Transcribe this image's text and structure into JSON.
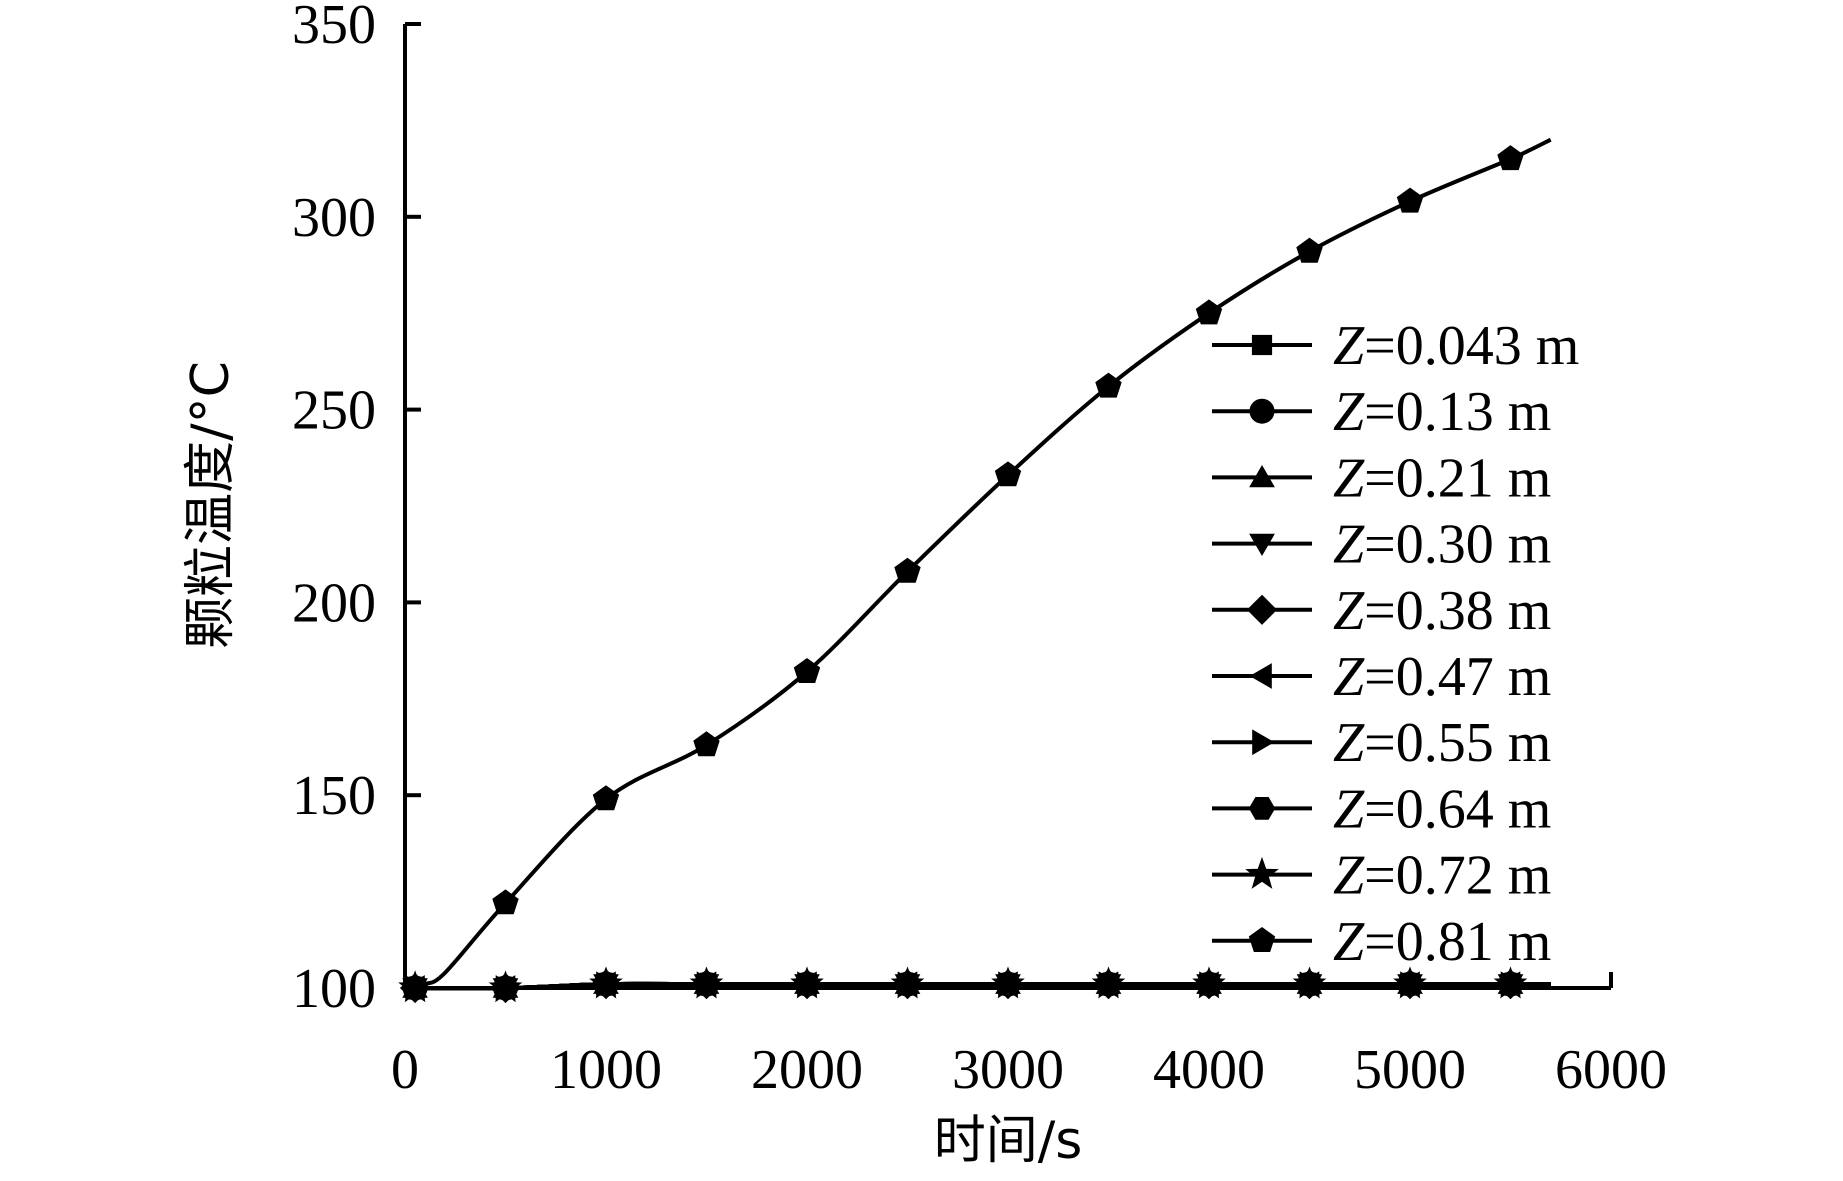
{
  "chart_data": {
    "type": "line",
    "xlabel": "时间/s",
    "ylabel": "颗粒温度/°C",
    "xlim": [
      0,
      6000
    ],
    "ylim": [
      100,
      350
    ],
    "xticks": [
      0,
      1000,
      2000,
      3000,
      4000,
      5000,
      6000
    ],
    "yticks": [
      100,
      150,
      200,
      250,
      300,
      350
    ],
    "grid": false,
    "legend_position": "right",
    "series": [
      {
        "name_italic": "Z",
        "name_value": "=0.043 m",
        "marker": "square",
        "x": [
          50,
          500,
          1000,
          1500,
          2000,
          2500,
          3000,
          3500,
          4000,
          4500,
          5000,
          5500,
          5700
        ],
        "y": [
          100,
          100,
          101,
          101,
          101,
          101,
          101,
          101,
          101,
          101,
          101,
          101,
          101
        ]
      },
      {
        "name_italic": "Z",
        "name_value": "=0.13 m",
        "marker": "circle",
        "x": [
          50,
          500,
          1000,
          1500,
          2000,
          2500,
          3000,
          3500,
          4000,
          4500,
          5000,
          5500,
          5700
        ],
        "y": [
          100,
          100,
          101,
          101,
          101,
          101,
          101,
          101,
          101,
          101,
          101,
          101,
          101
        ]
      },
      {
        "name_italic": "Z",
        "name_value": "=0.21 m",
        "marker": "triangle-up",
        "x": [
          50,
          500,
          1000,
          1500,
          2000,
          2500,
          3000,
          3500,
          4000,
          4500,
          5000,
          5500,
          5700
        ],
        "y": [
          100,
          100,
          101,
          101,
          101,
          101,
          101,
          101,
          101,
          101,
          101,
          101,
          101
        ]
      },
      {
        "name_italic": "Z",
        "name_value": "=0.30 m",
        "marker": "triangle-down",
        "x": [
          50,
          500,
          1000,
          1500,
          2000,
          2500,
          3000,
          3500,
          4000,
          4500,
          5000,
          5500,
          5700
        ],
        "y": [
          100,
          100,
          101,
          101,
          101,
          101,
          101,
          101,
          101,
          101,
          101,
          101,
          101
        ]
      },
      {
        "name_italic": "Z",
        "name_value": "=0.38 m",
        "marker": "diamond",
        "x": [
          50,
          500,
          1000,
          1500,
          2000,
          2500,
          3000,
          3500,
          4000,
          4500,
          5000,
          5500,
          5700
        ],
        "y": [
          100,
          100,
          101,
          101,
          101,
          101,
          101,
          101,
          101,
          101,
          101,
          101,
          101
        ]
      },
      {
        "name_italic": "Z",
        "name_value": "=0.47 m",
        "marker": "triangle-left",
        "x": [
          50,
          500,
          1000,
          1500,
          2000,
          2500,
          3000,
          3500,
          4000,
          4500,
          5000,
          5500,
          5700
        ],
        "y": [
          100,
          100,
          101,
          101,
          101,
          101,
          101,
          101,
          101,
          101,
          101,
          101,
          101
        ]
      },
      {
        "name_italic": "Z",
        "name_value": "=0.55 m",
        "marker": "triangle-right",
        "x": [
          50,
          500,
          1000,
          1500,
          2000,
          2500,
          3000,
          3500,
          4000,
          4500,
          5000,
          5500,
          5700
        ],
        "y": [
          100,
          100,
          101,
          101,
          101,
          101,
          101,
          101,
          101,
          101,
          101,
          101,
          101
        ]
      },
      {
        "name_italic": "Z",
        "name_value": "=0.64 m",
        "marker": "hexagon",
        "x": [
          50,
          500,
          1000,
          1500,
          2000,
          2500,
          3000,
          3500,
          4000,
          4500,
          5000,
          5500,
          5700
        ],
        "y": [
          100,
          100,
          101,
          101,
          101,
          101,
          101,
          101,
          101,
          101,
          101,
          101,
          101
        ]
      },
      {
        "name_italic": "Z",
        "name_value": "=0.72 m",
        "marker": "star",
        "x": [
          50,
          500,
          1000,
          1500,
          2000,
          2500,
          3000,
          3500,
          4000,
          4500,
          5000,
          5500,
          5700
        ],
        "y": [
          100,
          100,
          101,
          101,
          101,
          101,
          101,
          101,
          101,
          101,
          101,
          101,
          101
        ]
      },
      {
        "name_italic": "Z",
        "name_value": "=0.81 m",
        "marker": "pentagon",
        "x": [
          50,
          100,
          200,
          500,
          1000,
          1500,
          2000,
          2500,
          3000,
          3500,
          4000,
          4500,
          5000,
          5500,
          5700
        ],
        "y": [
          100,
          101,
          104,
          122,
          149,
          163,
          182,
          208,
          233,
          256,
          275,
          291,
          304,
          315,
          320
        ]
      }
    ]
  }
}
